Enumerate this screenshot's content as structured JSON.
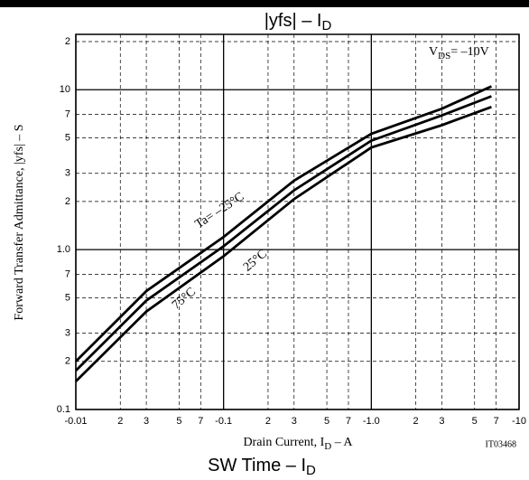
{
  "chart_data": {
    "type": "line",
    "title": {
      "text": "|yfs|  –  I",
      "sub": "D"
    },
    "x_label": {
      "text": "Drain Current, I",
      "sub": "D",
      "tail": "  –  A"
    },
    "y_label": "Forward Transfer Admittance, |yfs|  –  S",
    "annotation": {
      "text": "V",
      "sub": "DS",
      "tail": "= –10V"
    },
    "code": "IT03468",
    "footer": {
      "text": "SW Time  –  I",
      "sub": "D"
    },
    "x": [
      -0.01,
      -0.03,
      -0.1,
      -0.3,
      -1,
      -3,
      -6.5
    ],
    "series": [
      {
        "name": "Ta= –25°C",
        "color": "#000000",
        "values": [
          0.2,
          0.55,
          1.2,
          2.7,
          5.3,
          7.6,
          10.5
        ]
      },
      {
        "name": "25°C",
        "color": "#000000",
        "values": [
          0.175,
          0.48,
          1.05,
          2.35,
          4.8,
          6.9,
          9.1
        ]
      },
      {
        "name": "75°C",
        "color": "#000000",
        "values": [
          0.15,
          0.41,
          0.91,
          2.07,
          4.35,
          6.0,
          7.8
        ]
      }
    ],
    "xlog": true,
    "ylog": true,
    "xlim": [
      -0.01,
      -10
    ],
    "ylim": [
      0.1,
      20
    ],
    "xticks": [
      -0.01,
      {
        "value": -0.02,
        "label": "2"
      },
      {
        "value": -0.03,
        "label": "3"
      },
      {
        "value": -0.05,
        "label": "5"
      },
      {
        "value": -0.07,
        "label": "7"
      },
      -0.1,
      {
        "value": -0.2,
        "label": "2"
      },
      {
        "value": -0.3,
        "label": "3"
      },
      {
        "value": -0.5,
        "label": "5"
      },
      {
        "value": -0.7,
        "label": "7"
      },
      {
        "value": -1,
        "label": "-1.0"
      },
      {
        "value": -2,
        "label": "2"
      },
      {
        "value": -3,
        "label": "3"
      },
      {
        "value": -5,
        "label": "5"
      },
      {
        "value": -7,
        "label": "7"
      },
      -10
    ],
    "yticks": [
      0.1,
      {
        "value": 0.2,
        "label": "2"
      },
      {
        "value": 0.3,
        "label": "3"
      },
      {
        "value": 0.5,
        "label": "5"
      },
      {
        "value": 0.7,
        "label": "7"
      },
      {
        "value": 1,
        "label": "1.0"
      },
      {
        "value": 2,
        "label": "2"
      },
      {
        "value": 3,
        "label": "3"
      },
      {
        "value": 5,
        "label": "5"
      },
      {
        "value": 7,
        "label": "7"
      },
      10,
      {
        "value": 20,
        "label": "2"
      }
    ],
    "grid": true
  }
}
